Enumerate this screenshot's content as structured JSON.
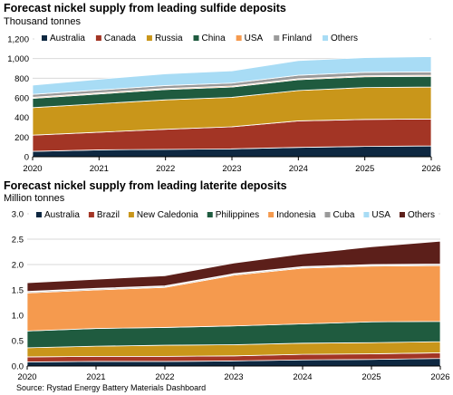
{
  "source": "Source: Rystad Energy Battery Materials Dashboard",
  "chart_data": [
    {
      "type": "area",
      "stacked": true,
      "title": "Forecast nickel supply from leading sulfide deposits",
      "subtitle": "Thousand tonnes",
      "ylim": [
        0,
        1200
      ],
      "yticks": [
        "0",
        "200",
        "400",
        "600",
        "800",
        "1,000",
        "1,200"
      ],
      "x": [
        "2020",
        "2021",
        "2022",
        "2023",
        "2024",
        "2025",
        "2026"
      ],
      "grid": true,
      "legend": "top",
      "series": [
        {
          "name": "Australia",
          "color": "#0e2841",
          "values": [
            55,
            70,
            75,
            80,
            95,
            105,
            110
          ]
        },
        {
          "name": "Canada",
          "color": "#a33525",
          "values": [
            165,
            180,
            205,
            225,
            270,
            275,
            275
          ]
        },
        {
          "name": "Russia",
          "color": "#c9961a",
          "values": [
            280,
            290,
            300,
            300,
            310,
            325,
            325
          ]
        },
        {
          "name": "China",
          "color": "#1f5b3f",
          "values": [
            95,
            100,
            105,
            105,
            110,
            110,
            110
          ]
        },
        {
          "name": "USA",
          "color": "#f59a4e",
          "values": [
            10,
            10,
            10,
            10,
            10,
            10,
            10
          ]
        },
        {
          "name": "Finland",
          "color": "#9a9a9a",
          "values": [
            30,
            30,
            30,
            30,
            35,
            35,
            35
          ]
        },
        {
          "name": "Others",
          "color": "#a8dcf5",
          "values": [
            95,
            110,
            120,
            125,
            150,
            150,
            155
          ]
        }
      ]
    },
    {
      "type": "area",
      "stacked": true,
      "title": "Forecast nickel supply from leading laterite deposits",
      "subtitle": "Million tonnes",
      "ylim": [
        0,
        3
      ],
      "yticks": [
        "0.0",
        "0.5",
        "1.0",
        "1.5",
        "2.0",
        "2.5",
        "3.0"
      ],
      "x": [
        "2020",
        "2021",
        "2022",
        "2023",
        "2024",
        "2025",
        "2026"
      ],
      "grid": true,
      "legend": "top",
      "series": [
        {
          "name": "Australia",
          "color": "#0e2841",
          "values": [
            0.08,
            0.09,
            0.09,
            0.1,
            0.12,
            0.13,
            0.15
          ]
        },
        {
          "name": "Brazil",
          "color": "#a33525",
          "values": [
            0.1,
            0.1,
            0.1,
            0.1,
            0.11,
            0.11,
            0.11
          ]
        },
        {
          "name": "New Caledonia",
          "color": "#c9961a",
          "values": [
            0.18,
            0.2,
            0.22,
            0.22,
            0.22,
            0.22,
            0.22
          ]
        },
        {
          "name": "Philippines",
          "color": "#1f5b3f",
          "values": [
            0.33,
            0.35,
            0.35,
            0.37,
            0.38,
            0.41,
            0.4
          ]
        },
        {
          "name": "Indonesia",
          "color": "#f59a4e",
          "values": [
            0.75,
            0.76,
            0.79,
            1.0,
            1.1,
            1.1,
            1.1
          ]
        },
        {
          "name": "Cuba",
          "color": "#9a9a9a",
          "values": [
            0.02,
            0.02,
            0.02,
            0.02,
            0.02,
            0.02,
            0.02
          ]
        },
        {
          "name": "USA",
          "color": "#a8dcf5",
          "values": [
            0.01,
            0.01,
            0.01,
            0.01,
            0.01,
            0.01,
            0.01
          ]
        },
        {
          "name": "Others",
          "color": "#5c1f1a",
          "values": [
            0.17,
            0.18,
            0.2,
            0.21,
            0.25,
            0.35,
            0.45
          ]
        }
      ]
    }
  ]
}
